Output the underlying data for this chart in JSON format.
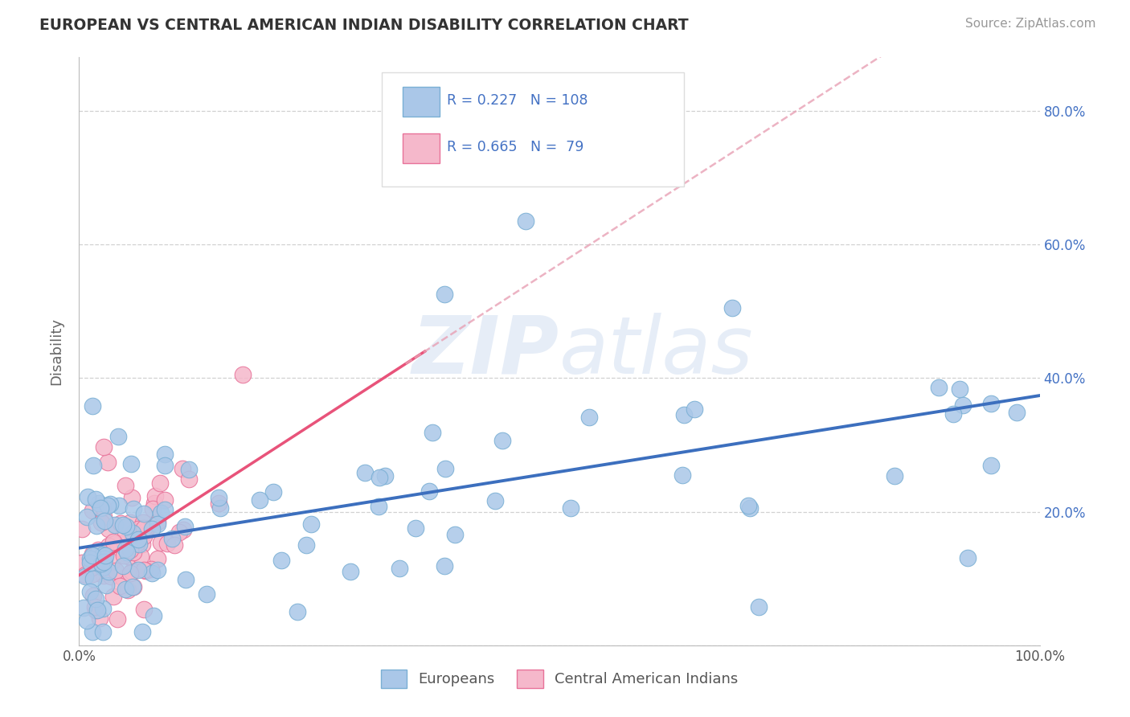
{
  "title": "EUROPEAN VS CENTRAL AMERICAN INDIAN DISABILITY CORRELATION CHART",
  "source": "Source: ZipAtlas.com",
  "ylabel": "Disability",
  "xlim": [
    0.0,
    1.0
  ],
  "ylim": [
    0.0,
    0.88
  ],
  "x_ticks": [
    0.0,
    0.2,
    0.4,
    0.6,
    0.8,
    1.0
  ],
  "x_tick_labels": [
    "0.0%",
    "",
    "",
    "",
    "",
    "100.0%"
  ],
  "y_ticks": [
    0.0,
    0.2,
    0.4,
    0.6,
    0.8
  ],
  "y_tick_labels": [
    "",
    "20.0%",
    "40.0%",
    "60.0%",
    "80.0%"
  ],
  "european_color": "#aac7e8",
  "cai_color": "#f5b8cb",
  "european_edge": "#7aafd4",
  "cai_edge": "#e87299",
  "trendline_european_color": "#3c6fbe",
  "trendline_cai_color": "#e8537a",
  "dashed_line_color": "#e8a0b4",
  "R_european": 0.227,
  "N_european": 108,
  "R_cai": 0.665,
  "N_cai": 79,
  "watermark": "ZIPAtlas",
  "background_color": "#ffffff",
  "grid_color": "#cccccc",
  "tick_color": "#4472c4",
  "title_color": "#333333",
  "source_color": "#999999"
}
